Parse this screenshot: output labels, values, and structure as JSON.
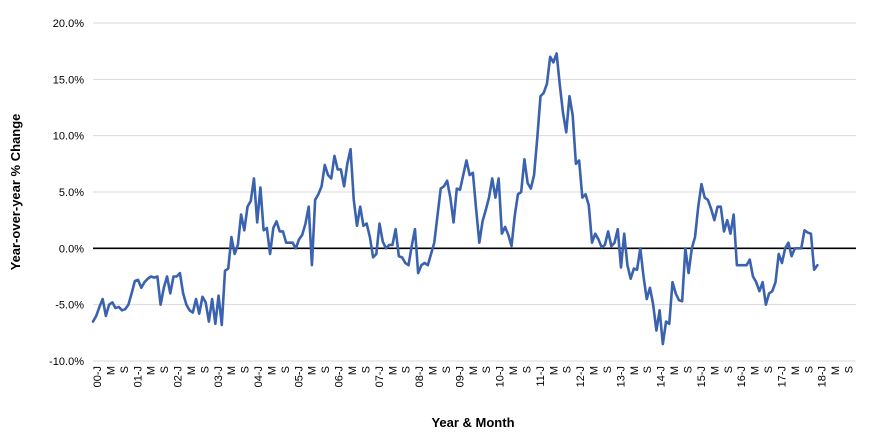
{
  "chart_data": {
    "type": "line",
    "title": "",
    "xlabel": "Year & Month",
    "ylabel": "Year-over-year % Change",
    "ylim": [
      -10,
      20
    ],
    "y_ticks": [
      "-10.0%",
      "-5.0%",
      "0.0%",
      "5.0%",
      "10.0%",
      "15.0%",
      "20.0%"
    ],
    "y_tick_values": [
      -10,
      -5,
      0,
      5,
      10,
      15,
      20
    ],
    "x_tick_labels": [
      "00-J",
      "M",
      "S",
      "01-J",
      "M",
      "S",
      "02-J",
      "M",
      "S",
      "03-J",
      "M",
      "S",
      "04-J",
      "M",
      "S",
      "05-J",
      "M",
      "S",
      "06-J",
      "M",
      "S",
      "07-J",
      "M",
      "S",
      "08-J",
      "M",
      "S",
      "09-J",
      "M",
      "S",
      "10-J",
      "M",
      "S",
      "11-J",
      "M",
      "S",
      "12-J",
      "M",
      "S",
      "13-J",
      "M",
      "S",
      "14-J",
      "M",
      "S",
      "15-J",
      "M",
      "S",
      "16-J",
      "M",
      "S",
      "17-J",
      "M",
      "S",
      "18-J",
      "M",
      "S"
    ],
    "grid": "horizontal",
    "zero_line": true,
    "series_color": "#3A62AE",
    "series": [
      {
        "values": [
          -6.5,
          -6.0,
          -5.2,
          -4.5,
          -6.0,
          -5.0,
          -4.8,
          -5.3,
          -5.2,
          -5.5,
          -5.4,
          -5.0,
          -4.0,
          -2.9,
          -2.8,
          -3.5,
          -3.0,
          -2.7,
          -2.5,
          -2.6,
          -2.5,
          -5.0,
          -3.5,
          -2.5,
          -4.0,
          -2.5,
          -2.5,
          -2.2,
          -4.0,
          -5.0,
          -5.5,
          -5.7,
          -4.5,
          -5.8,
          -4.3,
          -4.8,
          -6.5,
          -4.5,
          -6.7,
          -4.2,
          -6.8,
          -2.0,
          -1.8,
          1.0,
          -0.5,
          0.3,
          3.0,
          1.6,
          3.7,
          4.2,
          6.2,
          2.3,
          5.4,
          1.6,
          1.8,
          -0.5,
          1.8,
          2.4,
          1.5,
          1.5,
          0.5,
          0.5,
          0.5,
          0.0,
          0.8,
          1.2,
          2.2,
          3.7,
          -1.5,
          4.3,
          4.8,
          5.5,
          7.4,
          6.5,
          6.2,
          8.2,
          7.0,
          7.0,
          5.5,
          7.5,
          8.8,
          4.3,
          2.0,
          3.7,
          2.0,
          2.2,
          1.0,
          -0.8,
          -0.5,
          2.2,
          0.6,
          0.0,
          0.3,
          0.3,
          1.7,
          -0.7,
          -0.8,
          -1.3,
          -1.5,
          0.2,
          1.7,
          -2.2,
          -1.5,
          -1.3,
          -1.5,
          -0.5,
          0.5,
          2.9,
          5.3,
          5.5,
          6.0,
          4.5,
          2.3,
          5.3,
          5.2,
          6.5,
          7.8,
          6.5,
          6.7,
          3.5,
          0.5,
          2.4,
          3.4,
          4.5,
          6.2,
          4.5,
          6.2,
          1.3,
          1.9,
          1.2,
          0.2,
          2.9,
          4.8,
          5.0,
          7.9,
          5.8,
          5.3,
          6.5,
          9.8,
          13.5,
          13.8,
          14.6,
          17.0,
          16.5,
          17.3,
          14.5,
          12.0,
          10.3,
          13.5,
          11.8,
          7.5,
          7.8,
          4.5,
          4.8,
          3.8,
          0.5,
          1.3,
          0.8,
          0.1,
          0.3,
          1.5,
          0.2,
          0.5,
          1.7,
          -1.7,
          1.3,
          -1.5,
          -2.7,
          -1.8,
          -1.9,
          0.0,
          -2.5,
          -4.5,
          -3.5,
          -5.0,
          -7.3,
          -5.5,
          -8.5,
          -6.5,
          -6.7,
          -3.0,
          -4.0,
          -4.6,
          -4.7,
          0.0,
          -2.2,
          0.0,
          1.0,
          3.7,
          5.7,
          4.5,
          4.3,
          3.5,
          2.5,
          3.7,
          3.7,
          1.5,
          2.5,
          1.3,
          3.0,
          -1.5,
          -1.5,
          -1.5,
          -1.5,
          -1.0,
          -2.5,
          -3.0,
          -3.8,
          -3.0,
          -5.0,
          -4.0,
          -3.8,
          -3.0,
          -0.5,
          -1.3,
          0.0,
          0.5,
          -0.7,
          0.0,
          0.0,
          0.0,
          1.6,
          1.4,
          1.3,
          -1.9,
          -1.5
        ]
      }
    ]
  }
}
